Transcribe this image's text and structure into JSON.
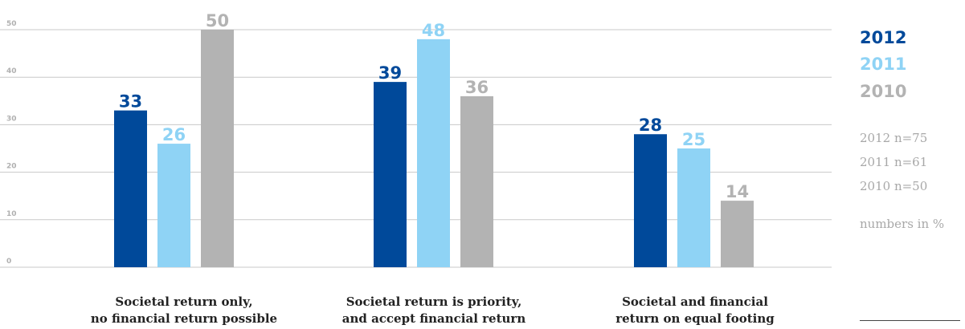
{
  "colors": {
    "2012": "#00499a",
    "2011": "#8fd3f5",
    "2010": "#b3b3b3",
    "grid": "#c8c8c8",
    "tick": "#b0b0b0"
  },
  "legend": {
    "years": [
      {
        "label": "2012",
        "color": "#00499a"
      },
      {
        "label": "2011",
        "color": "#8fd3f5"
      },
      {
        "label": "2010",
        "color": "#b3b3b3"
      }
    ],
    "samples": [
      "2012 n=75",
      "2011 n=61",
      "2010 n=50"
    ],
    "note": "numbers in %"
  },
  "chart_data": {
    "type": "bar",
    "categories": [
      [
        "Societal return only,",
        "no financial return possible"
      ],
      [
        "Societal return is priority,",
        "and accept financial return"
      ],
      [
        "Societal and financial",
        "return on equal footing"
      ]
    ],
    "series": [
      {
        "name": "2012",
        "values": [
          33,
          39,
          28
        ]
      },
      {
        "name": "2011",
        "values": [
          26,
          48,
          25
        ]
      },
      {
        "name": "2010",
        "values": [
          50,
          36,
          14
        ]
      }
    ],
    "ylim": [
      0,
      50
    ],
    "yticks": [
      0,
      10,
      20,
      30,
      40,
      50
    ],
    "grid": true,
    "legend_position": "right"
  }
}
